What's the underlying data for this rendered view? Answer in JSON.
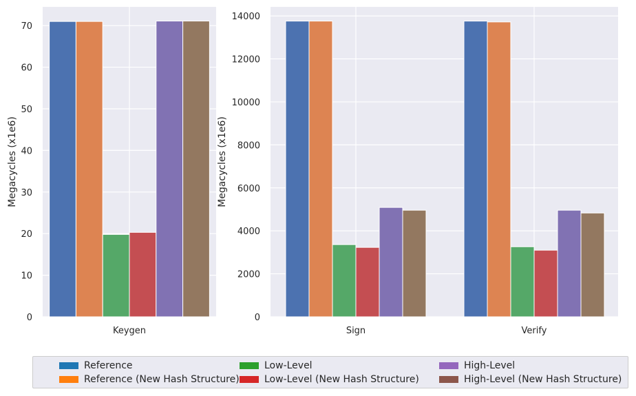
{
  "colors": {
    "plot_bg": "#eaeaf2",
    "grid": "#ffffff",
    "bar_fills": [
      "#4c72b0",
      "#dd8452",
      "#55a868",
      "#c44e52",
      "#8172b3",
      "#937860"
    ],
    "legend_swatches": [
      "#1f77b4",
      "#ff7f0e",
      "#2ca02c",
      "#d62728",
      "#9467bd",
      "#8c564b"
    ]
  },
  "chart_data": [
    {
      "type": "bar",
      "categories": [
        "Keygen"
      ],
      "ylabel": "Megacycles (x1e6)",
      "xlabel": "",
      "ylim": [
        0,
        74.5
      ],
      "yticks": [
        "0",
        "10",
        "20",
        "30",
        "40",
        "50",
        "60",
        "70"
      ],
      "ytick_values": [
        0,
        10,
        20,
        30,
        40,
        50,
        60,
        70
      ],
      "grid": true,
      "series": [
        {
          "name": "Reference",
          "values": [
            71.0
          ]
        },
        {
          "name": "Reference (New Hash Structure)",
          "values": [
            71.0
          ]
        },
        {
          "name": "Low-Level",
          "values": [
            19.8
          ]
        },
        {
          "name": "Low-Level (New Hash Structure)",
          "values": [
            20.3
          ]
        },
        {
          "name": "High-Level",
          "values": [
            71.1
          ]
        },
        {
          "name": "High-Level (New Hash Structure)",
          "values": [
            71.1
          ]
        }
      ]
    },
    {
      "type": "bar",
      "categories": [
        "Sign",
        "Verify"
      ],
      "ylabel": "Megacycles (x1e6)",
      "xlabel": "",
      "ylim": [
        0,
        14420
      ],
      "yticks": [
        "0",
        "2000",
        "4000",
        "6000",
        "8000",
        "10000",
        "12000",
        "14000"
      ],
      "ytick_values": [
        0,
        2000,
        4000,
        6000,
        8000,
        10000,
        12000,
        14000
      ],
      "grid": true,
      "series": [
        {
          "name": "Reference",
          "values": [
            13760,
            13760
          ]
        },
        {
          "name": "Reference (New Hash Structure)",
          "values": [
            13760,
            13720
          ]
        },
        {
          "name": "Low-Level",
          "values": [
            3360,
            3260
          ]
        },
        {
          "name": "Low-Level (New Hash Structure)",
          "values": [
            3230,
            3100
          ]
        },
        {
          "name": "High-Level",
          "values": [
            5090,
            4960
          ]
        },
        {
          "name": "High-Level (New Hash Structure)",
          "values": [
            4960,
            4830
          ]
        }
      ]
    }
  ],
  "legend": {
    "items": [
      "Reference",
      "Reference (New Hash Structure)",
      "Low-Level",
      "Low-Level (New Hash Structure)",
      "High-Level",
      "High-Level (New Hash Structure)"
    ]
  }
}
